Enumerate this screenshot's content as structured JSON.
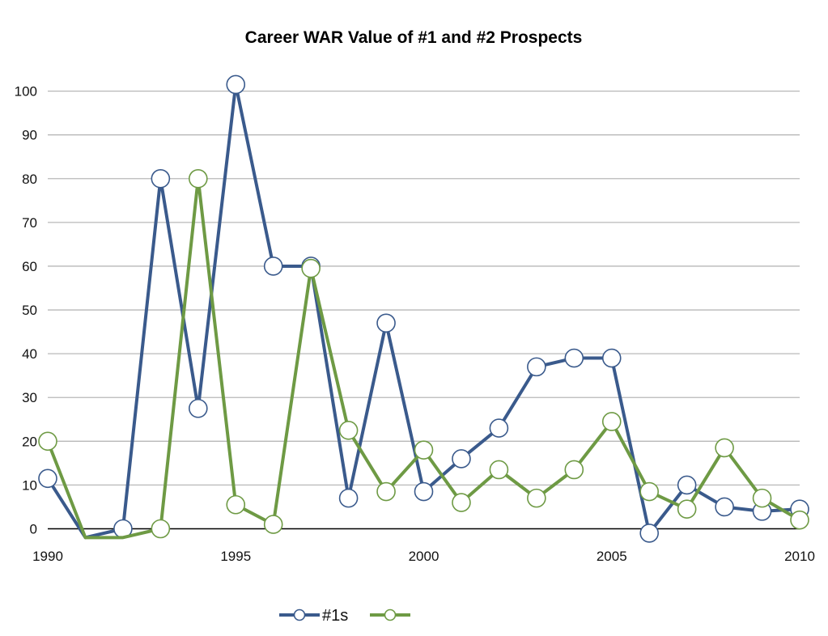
{
  "chart_data": {
    "type": "line",
    "title": "Career WAR Value of #1 and #2 Prospects",
    "xlabel": "",
    "ylabel": "",
    "xlim": [
      1990,
      2010
    ],
    "ylim": [
      0,
      100
    ],
    "x_ticks": [
      "1990",
      "1995",
      "2000",
      "2005",
      "2010"
    ],
    "y_ticks": [
      "0",
      "10",
      "20",
      "30",
      "40",
      "50",
      "60",
      "70",
      "80",
      "90",
      "100"
    ],
    "x": [
      1990,
      1991,
      1992,
      1993,
      1994,
      1995,
      1996,
      1997,
      1998,
      1999,
      2000,
      2001,
      2002,
      2003,
      2004,
      2005,
      2006,
      2007,
      2008,
      2009,
      2010
    ],
    "series": [
      {
        "name": "#1s",
        "color": "#3a5a8c",
        "values": [
          11.5,
          -2,
          0,
          80,
          27.5,
          101.5,
          60,
          60,
          7,
          47,
          8.5,
          16,
          23,
          37,
          39,
          39,
          -1,
          10,
          5,
          4,
          4.5
        ]
      },
      {
        "name": "",
        "color": "#6e9a44",
        "values": [
          20,
          -2,
          -2,
          0,
          80,
          5.5,
          1,
          59.5,
          22.5,
          8.5,
          18,
          6,
          13.5,
          7,
          13.5,
          24.5,
          8.5,
          4.5,
          18.5,
          7,
          2
        ]
      }
    ],
    "legend": {
      "position": "bottom-center",
      "labels": [
        "#1s",
        ""
      ]
    },
    "grid": true
  }
}
